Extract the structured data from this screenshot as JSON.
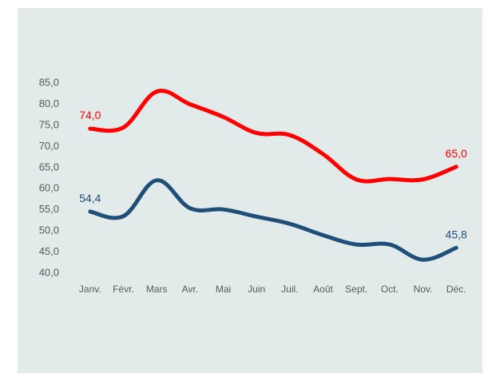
{
  "chart_data": {
    "type": "line",
    "categories": [
      "Janv.",
      "Févr.",
      "Mars",
      "Avr.",
      "Mai",
      "Juin",
      "Juil.",
      "Août",
      "Sept.",
      "Oct.",
      "Nov.",
      "Déc."
    ],
    "y_ticks": [
      "40,0",
      "45,0",
      "50,0",
      "55,0",
      "60,0",
      "65,0",
      "70,0",
      "75,0",
      "80,0",
      "85,0"
    ],
    "ylim": [
      40,
      85
    ],
    "grid": false,
    "legend": "none",
    "series": [
      {
        "color": "#ff0000",
        "values": [
          74.0,
          74.3,
          82.8,
          79.8,
          76.8,
          73.0,
          72.5,
          68.0,
          62.0,
          62.1,
          62.0,
          65.0
        ],
        "labels": [
          {
            "index": 0,
            "text": "74,0"
          },
          {
            "index": 11,
            "text": "65,0"
          }
        ]
      },
      {
        "color": "#1f4e79",
        "values": [
          54.4,
          53.3,
          61.8,
          55.2,
          54.9,
          53.2,
          51.5,
          48.8,
          46.6,
          46.6,
          43.0,
          45.8
        ],
        "labels": [
          {
            "index": 0,
            "text": "54,4"
          },
          {
            "index": 11,
            "text": "45,8"
          }
        ]
      }
    ]
  }
}
